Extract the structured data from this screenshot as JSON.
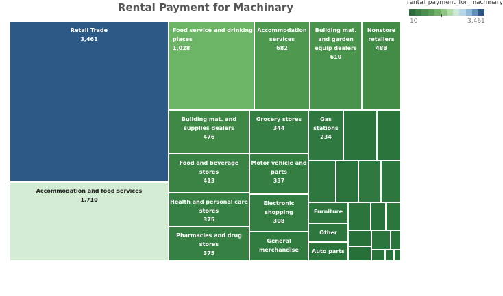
{
  "legend": {
    "title": "rental_payment_for_machinary",
    "min_label": "10",
    "max_label": "3,461",
    "colors": [
      "#2f6b3f",
      "#3d7d46",
      "#4a8e4d",
      "#5a9d58",
      "#6fb066",
      "#8bc57f",
      "#aedba6",
      "#cfe9d8",
      "#b7d7e8",
      "#8fb8d6",
      "#5f8fbd",
      "#2d5585"
    ]
  },
  "chart_data": {
    "type": "treemap",
    "title": "Rental Payment for Machinary",
    "color_field": "rental_payment_for_machinary",
    "color_range": [
      10,
      3461
    ],
    "labeled_items": [
      {
        "label": "Retail Trade",
        "value_label": "3,461",
        "value": 3461,
        "color": "#2c5985"
      },
      {
        "label": "Accommodation and food services",
        "value_label": "1,710",
        "value": 1710,
        "color": "#d4ecd4"
      },
      {
        "label": "Food service and drinking places",
        "value_label": "1,028",
        "value": 1028,
        "color": "#6cb566"
      },
      {
        "label": "Accommodation services",
        "value_label": "682",
        "value": 682,
        "color": "#4e9850"
      },
      {
        "label": "Building mat. and garden equip dealers",
        "value_label": "610",
        "value": 610,
        "color": "#4a934c"
      },
      {
        "label": "Nonstore retailers",
        "value_label": "488",
        "value": 488,
        "color": "#438c48"
      },
      {
        "label": "Building mat. and supplies dealers",
        "value_label": "476",
        "value": 476,
        "color": "#3f8846"
      },
      {
        "label": "Grocery stores",
        "value_label": "344",
        "value": 344,
        "color": "#367f42"
      },
      {
        "label": "Gas stations",
        "value_label": "234",
        "value": 234,
        "color": "#2f783f"
      },
      {
        "label": "Food and beverage stores",
        "value_label": "413",
        "value": 413,
        "color": "#3a8344"
      },
      {
        "label": "Motor vehicle and parts",
        "value_label": "337",
        "value": 337,
        "color": "#347e41"
      },
      {
        "label": "Health and personal care stores",
        "value_label": "375",
        "value": 375,
        "color": "#378043"
      },
      {
        "label": "Electronic shopping",
        "value_label": "308",
        "value": 308,
        "color": "#337d40"
      },
      {
        "label": "Pharmacies and drug stores",
        "value_label": "375",
        "value": 375,
        "color": "#378043"
      },
      {
        "label": "General merchandise",
        "value_label": "",
        "value": null,
        "color": "#327c40"
      },
      {
        "label": "Furniture",
        "value_label": "",
        "value": null,
        "color": "#2e773e"
      },
      {
        "label": "Other",
        "value_label": "",
        "value": null,
        "color": "#2d763d"
      },
      {
        "label": "Auto parts",
        "value_label": "",
        "value": null,
        "color": "#2c753d"
      }
    ],
    "unlabeled_tile_colors": [
      "#2b743c",
      "#2a733b",
      "#2e773e",
      "#2a733b",
      "#2f783f",
      "#2d763d",
      "#2b743c",
      "#2a723b",
      "#2c753d",
      "#29713a",
      "#2c753d",
      "#2a733b",
      "#28703a",
      "#2b743c",
      "#29713a",
      "#2a723b",
      "#286f39",
      "#296f3a"
    ]
  }
}
